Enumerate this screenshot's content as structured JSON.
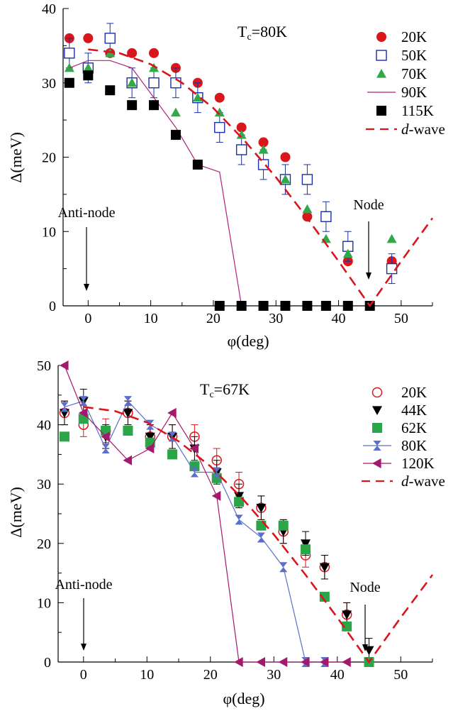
{
  "colors": {
    "red": "#d9161c",
    "blue": "#1a2fa8",
    "green": "#31a84a",
    "purple": "#b0247a",
    "black": "#000000",
    "green_square": "#2aa548",
    "periwinkle": "#5a6fcc",
    "magenta": "#a3196e",
    "dwave": "#d9161c"
  },
  "chart_data": [
    {
      "type": "scatter",
      "title": "Tc=80K",
      "title_main": "T",
      "title_sub": "c",
      "title_rest": "=80K",
      "xlabel": "φ(deg)",
      "ylabel": "Δ(meV)",
      "xlim": [
        -4,
        55
      ],
      "ylim": [
        0,
        40
      ],
      "xticks": [
        0,
        10,
        20,
        30,
        40,
        50
      ],
      "yticks": [
        0,
        10,
        20,
        30,
        40
      ],
      "xtick_labels": [
        "0",
        "10",
        "20",
        "30",
        "40",
        "50"
      ],
      "ytick_labels": [
        "0",
        "10",
        "20",
        "30",
        "40"
      ],
      "grid": false,
      "legend_position": "top-right",
      "annotations": {
        "antinode": "Anti-node",
        "node": "Node"
      },
      "series": [
        {
          "name": "20K",
          "marker": "circle",
          "color_key": "red",
          "x": [
            -3,
            0,
            3.5,
            7,
            10.5,
            14,
            17.5,
            21,
            24.5,
            28,
            31.5,
            35,
            41.5,
            48.5
          ],
          "y": [
            36,
            36,
            34,
            34,
            34,
            32,
            30,
            28,
            24,
            22,
            20,
            12,
            6,
            6
          ]
        },
        {
          "name": "50K",
          "marker": "square-open",
          "color_key": "blue",
          "x": [
            -3,
            0,
            3.5,
            7,
            10.5,
            14,
            17.5,
            21,
            24.5,
            28,
            31.5,
            35,
            38,
            41.5,
            48.5
          ],
          "y": [
            34,
            32,
            36,
            30,
            30,
            30,
            28,
            24,
            21,
            19,
            17,
            17,
            12,
            8,
            5
          ],
          "err": [
            2,
            2,
            2,
            2,
            2,
            2,
            2,
            2,
            2,
            2,
            2,
            2,
            2,
            2,
            2
          ]
        },
        {
          "name": "70K",
          "marker": "triangle-up",
          "color_key": "green",
          "x": [
            -3,
            0,
            3.5,
            7,
            10.5,
            14,
            17.5,
            21,
            24.5,
            28,
            31.5,
            35,
            38,
            41.5,
            48.5
          ],
          "y": [
            32,
            32,
            34,
            30,
            32,
            26,
            28,
            26,
            23,
            21,
            17,
            13,
            9,
            7,
            9
          ]
        },
        {
          "name": "90K",
          "marker": "bowtie",
          "color_key": "purple",
          "line": true,
          "x": [
            -3,
            0,
            3.5,
            7,
            10.5,
            14,
            17.5,
            21,
            24.5
          ],
          "y": [
            32,
            33,
            33,
            32,
            28,
            24,
            19,
            18,
            0
          ]
        },
        {
          "name": "115K",
          "marker": "square",
          "color_key": "black",
          "x": [
            -3,
            0,
            3.5,
            7,
            10.5,
            14,
            17.5,
            21,
            24.5,
            28,
            31.5,
            35,
            38,
            41.5,
            45
          ],
          "y": [
            30,
            31,
            29,
            27,
            27,
            23,
            19,
            0,
            0,
            0,
            0,
            0,
            0,
            0,
            0
          ]
        },
        {
          "name": "d-wave",
          "marker": "dashed-line",
          "color_key": "dwave",
          "x": [
            0,
            5,
            10,
            15,
            20,
            25,
            30,
            35,
            40,
            45,
            50,
            55
          ],
          "y": [
            34.5,
            34.0,
            32.5,
            30.0,
            26.6,
            22.2,
            17.3,
            11.8,
            6.0,
            0,
            6.0,
            11.8
          ]
        }
      ]
    },
    {
      "type": "scatter",
      "title": "Tc=67K",
      "title_main": "T",
      "title_sub": "c",
      "title_rest": "=67K",
      "xlabel": "φ(deg)",
      "ylabel": "Δ(meV)",
      "xlim": [
        -4,
        55
      ],
      "ylim": [
        0,
        50
      ],
      "xticks": [
        0,
        10,
        20,
        30,
        40,
        50
      ],
      "yticks": [
        0,
        10,
        20,
        30,
        40,
        50
      ],
      "xtick_labels": [
        "0",
        "10",
        "20",
        "30",
        "40",
        "50"
      ],
      "ytick_labels": [
        "0",
        "10",
        "20",
        "30",
        "40",
        "50"
      ],
      "grid": false,
      "legend_position": "top-right",
      "annotations": {
        "antinode": "Anti-node",
        "node": "Node"
      },
      "series": [
        {
          "name": "20K",
          "marker": "circle-open",
          "color_key": "red",
          "x": [
            -3,
            0,
            3.5,
            7,
            10.5,
            14,
            17.5,
            21,
            24.5,
            28,
            31.5,
            35,
            38,
            41.5
          ],
          "y": [
            42,
            40,
            39,
            42,
            38,
            38,
            38,
            34,
            30,
            26,
            22,
            18,
            16,
            8
          ],
          "err": [
            2,
            2,
            2,
            2,
            2,
            2,
            2,
            2,
            2,
            2,
            2,
            2,
            2,
            2
          ]
        },
        {
          "name": "44K",
          "marker": "triangle-down",
          "color_key": "black",
          "x": [
            -3,
            0,
            3.5,
            7,
            10.5,
            14,
            17.5,
            21,
            24.5,
            28,
            31.5,
            35,
            38,
            41.5,
            45
          ],
          "y": [
            42,
            44,
            38,
            42,
            38,
            38,
            36,
            32,
            28,
            26,
            22,
            20,
            16,
            8,
            2
          ],
          "err": [
            2,
            2,
            2,
            2,
            2,
            2,
            2,
            2,
            2,
            2,
            2,
            2,
            2,
            2,
            2
          ]
        },
        {
          "name": "62K",
          "marker": "square",
          "color_key": "green_square",
          "x": [
            -3,
            0,
            3.5,
            7,
            10.5,
            14,
            17.5,
            21,
            24.5,
            28,
            31.5,
            35,
            38,
            41.5,
            45
          ],
          "y": [
            38,
            41,
            39,
            39,
            37,
            35,
            33,
            31,
            27,
            23,
            23,
            19,
            11,
            6,
            0
          ]
        },
        {
          "name": "80K",
          "marker": "hourglass",
          "color_key": "periwinkle",
          "line": true,
          "x": [
            -3,
            0,
            3.5,
            7,
            10.5,
            14,
            17.5,
            21,
            24.5,
            28,
            31.5,
            35,
            38
          ],
          "y": [
            43,
            44,
            36,
            44,
            40,
            38,
            32,
            32,
            24,
            21,
            16,
            0,
            0
          ]
        },
        {
          "name": "120K",
          "marker": "triangle-left",
          "color_key": "magenta",
          "line": true,
          "x": [
            -3,
            0,
            3.5,
            7,
            10.5,
            14,
            17.5,
            21,
            24.5,
            28,
            31.5,
            35,
            38,
            41.5
          ],
          "y": [
            50,
            42,
            38,
            34,
            36,
            42,
            36,
            28,
            0,
            0,
            0,
            0,
            0,
            0
          ]
        },
        {
          "name": "d-wave",
          "marker": "dashed-line",
          "color_key": "dwave",
          "x": [
            0,
            5,
            10,
            15,
            20,
            25,
            30,
            35,
            40,
            45,
            50,
            55
          ],
          "y": [
            43,
            42.3,
            40.4,
            37.2,
            33.0,
            27.6,
            21.5,
            14.7,
            7.5,
            0,
            7.5,
            14.7
          ]
        }
      ]
    }
  ]
}
